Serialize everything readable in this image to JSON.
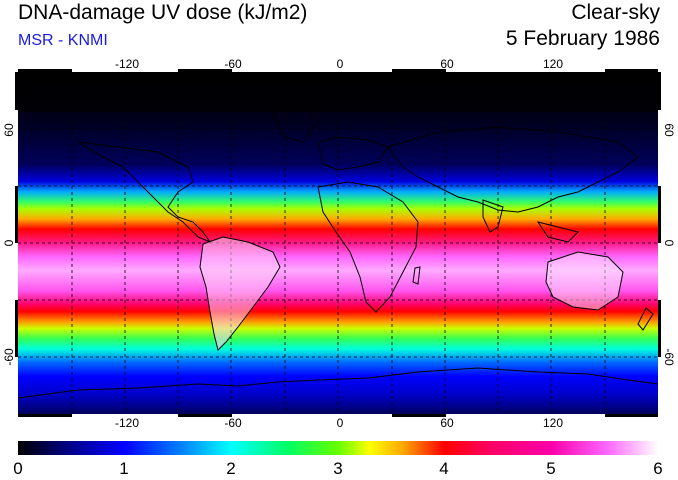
{
  "header": {
    "title": "DNA-damage UV dose (kJ/m2)",
    "subtitle": "MSR - KNMI",
    "condition": "Clear-sky",
    "date": "5 February 1986"
  },
  "map": {
    "lon_labels": [
      "-120",
      "-60",
      "0",
      "60",
      "120"
    ],
    "lat_labels": [
      "60",
      "0",
      "-60"
    ]
  },
  "colorbar": {
    "labels": [
      "0",
      "1",
      "2",
      "3",
      "4",
      "5",
      "6"
    ]
  }
}
